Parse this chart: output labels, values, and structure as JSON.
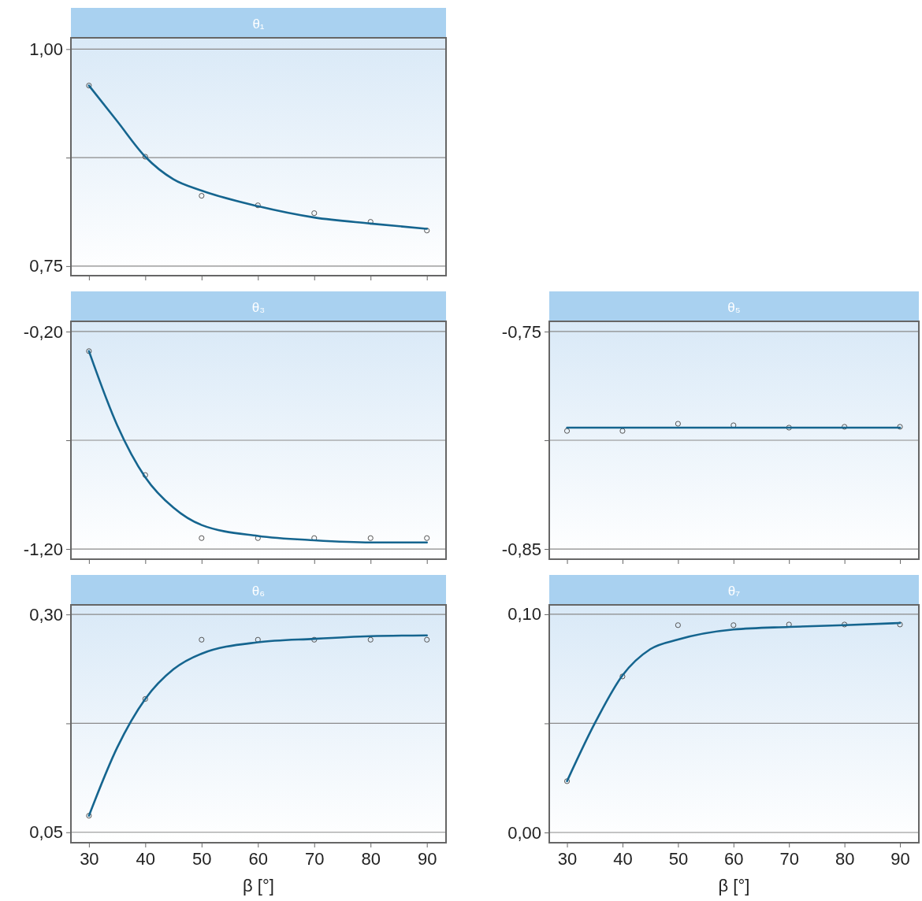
{
  "chart_data": [
    {
      "type": "scatter",
      "title": "θ₁",
      "xlim": [
        26.8,
        93.4
      ],
      "xticks": [
        30,
        40,
        50,
        60,
        70,
        80,
        90
      ],
      "ylim": [
        0.739,
        1.013
      ],
      "yticks": [
        {
          "value": 1,
          "label": "1,00"
        },
        {
          "value": 0.875,
          "label": null
        },
        {
          "value": 0.75,
          "label": "0,75"
        }
      ],
      "grid": "y",
      "tick_labels": "y",
      "series": [
        {
          "type": "scatter",
          "marker": "circle",
          "color": "#555555",
          "x": [
            30,
            40,
            50,
            60,
            70,
            80,
            90
          ],
          "values": [
            0.958,
            0.876,
            0.831,
            0.82,
            0.811,
            0.801,
            0.791
          ]
        },
        {
          "type": "line",
          "marker": "none",
          "line_style": "solid",
          "color": "#15658f",
          "x": [
            30,
            35,
            40,
            45,
            50,
            60,
            70,
            80,
            90
          ],
          "values": [
            0.958,
            0.917,
            0.876,
            0.85,
            0.837,
            0.819,
            0.806,
            0.799,
            0.793
          ]
        }
      ]
    },
    {
      "type": "scatter",
      "title": "θ₃",
      "xlim": [
        26.8,
        93.4
      ],
      "xticks": [
        30,
        40,
        50,
        60,
        70,
        80,
        90
      ],
      "ylim": [
        -1.247,
        -0.153
      ],
      "yticks": [
        {
          "value": -0.2,
          "label": "-0,20"
        },
        {
          "value": -0.7,
          "label": null
        },
        {
          "value": -1.2,
          "label": "-1,20"
        }
      ],
      "grid": "y",
      "tick_labels": "y",
      "series": [
        {
          "type": "scatter",
          "marker": "circle",
          "color": "#555555",
          "x": [
            30,
            40,
            50,
            60,
            70,
            80,
            90
          ],
          "values": [
            -0.29,
            -0.86,
            -1.15,
            -1.15,
            -1.15,
            -1.15,
            -1.15
          ]
        },
        {
          "type": "line",
          "marker": "none",
          "line_style": "solid",
          "color": "#15658f",
          "x": [
            30,
            35,
            40,
            45,
            50,
            60,
            70,
            80,
            90
          ],
          "values": [
            -0.29,
            -0.63,
            -0.87,
            -1.01,
            -1.09,
            -1.14,
            -1.16,
            -1.17,
            -1.17
          ]
        }
      ]
    },
    {
      "type": "scatter",
      "title": "θ₅",
      "xlim": [
        26.8,
        93.4
      ],
      "xticks": [
        30,
        40,
        50,
        60,
        70,
        80,
        90
      ],
      "ylim": [
        -0.8547,
        -0.7453
      ],
      "yticks": [
        {
          "value": -0.75,
          "label": "-0,75"
        },
        {
          "value": -0.8,
          "label": null
        },
        {
          "value": -0.85,
          "label": "-0,85"
        }
      ],
      "grid": "y",
      "tick_labels": "y",
      "series": [
        {
          "type": "scatter",
          "marker": "circle",
          "color": "#555555",
          "x": [
            30,
            40,
            50,
            60,
            70,
            80,
            90
          ],
          "values": [
            -0.7957,
            -0.7957,
            -0.7924,
            -0.7931,
            -0.7942,
            -0.7938,
            -0.7938
          ]
        },
        {
          "type": "line",
          "marker": "none",
          "line_style": "solid",
          "color": "#15658f",
          "x": [
            30,
            90
          ],
          "values": [
            -0.7942,
            -0.7942
          ]
        }
      ]
    },
    {
      "type": "scatter",
      "title": "θ₆",
      "xlabel": "β  [°]",
      "xlim": [
        26.8,
        93.4
      ],
      "xticks": [
        30,
        40,
        50,
        60,
        70,
        80,
        90
      ],
      "ylim": [
        0.038,
        0.311
      ],
      "yticks": [
        {
          "value": 0.3,
          "label": "0,30"
        },
        {
          "value": 0.175,
          "label": null
        },
        {
          "value": 0.05,
          "label": "0,05"
        }
      ],
      "grid": "y",
      "series": [
        {
          "type": "scatter",
          "marker": "circle",
          "color": "#555555",
          "x": [
            30,
            40,
            50,
            60,
            70,
            80,
            90
          ],
          "values": [
            0.069,
            0.203,
            0.271,
            0.271,
            0.271,
            0.271,
            0.271
          ]
        },
        {
          "type": "line",
          "marker": "none",
          "line_style": "solid",
          "color": "#15658f",
          "x": [
            30,
            35,
            40,
            45,
            50,
            60,
            70,
            80,
            90
          ],
          "values": [
            0.069,
            0.147,
            0.203,
            0.237,
            0.255,
            0.268,
            0.272,
            0.275,
            0.276
          ]
        }
      ]
    },
    {
      "type": "scatter",
      "title": "θ₇",
      "xlabel": "β  [°]",
      "xlim": [
        26.8,
        93.4
      ],
      "xticks": [
        30,
        40,
        50,
        60,
        70,
        80,
        90
      ],
      "ylim": [
        -0.0047,
        0.1043
      ],
      "yticks": [
        {
          "value": 0.1,
          "label": "0,10"
        },
        {
          "value": 0.05,
          "label": null
        },
        {
          "value": 0,
          "label": "0,00"
        }
      ],
      "grid": "y",
      "series": [
        {
          "type": "scatter",
          "marker": "circle",
          "color": "#555555",
          "x": [
            30,
            40,
            50,
            60,
            70,
            80,
            90
          ],
          "values": [
            0.0235,
            0.0715,
            0.095,
            0.095,
            0.0953,
            0.0953,
            0.0953
          ]
        },
        {
          "type": "line",
          "marker": "none",
          "line_style": "solid",
          "color": "#15658f",
          "x": [
            30,
            35,
            40,
            45,
            50,
            60,
            70,
            80,
            90
          ],
          "values": [
            0.0235,
            0.05,
            0.072,
            0.084,
            0.0884,
            0.093,
            0.0942,
            0.095,
            0.096
          ]
        }
      ]
    }
  ]
}
